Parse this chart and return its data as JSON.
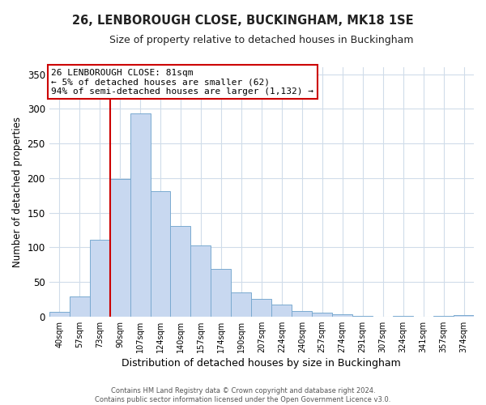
{
  "title": "26, LENBOROUGH CLOSE, BUCKINGHAM, MK18 1SE",
  "subtitle": "Size of property relative to detached houses in Buckingham",
  "xlabel": "Distribution of detached houses by size in Buckingham",
  "ylabel": "Number of detached properties",
  "categories": [
    "40sqm",
    "57sqm",
    "73sqm",
    "90sqm",
    "107sqm",
    "124sqm",
    "140sqm",
    "157sqm",
    "174sqm",
    "190sqm",
    "207sqm",
    "224sqm",
    "240sqm",
    "257sqm",
    "274sqm",
    "291sqm",
    "307sqm",
    "324sqm",
    "341sqm",
    "357sqm",
    "374sqm"
  ],
  "values": [
    7,
    29,
    111,
    198,
    293,
    181,
    131,
    103,
    69,
    35,
    25,
    17,
    8,
    5,
    3,
    1,
    0,
    1,
    0,
    1,
    2
  ],
  "bar_color": "#c8d8f0",
  "bar_edge_color": "#7aaad0",
  "marker_line_color": "#cc0000",
  "annotation_line1": "26 LENBOROUGH CLOSE: 81sqm",
  "annotation_line2": "← 5% of detached houses are smaller (62)",
  "annotation_line3": "94% of semi-detached houses are larger (1,132) →",
  "annotation_box_color": "#ffffff",
  "annotation_box_edge_color": "#cc0000",
  "ylim": [
    0,
    360
  ],
  "yticks": [
    0,
    50,
    100,
    150,
    200,
    250,
    300,
    350
  ],
  "footer_line1": "Contains HM Land Registry data © Crown copyright and database right 2024.",
  "footer_line2": "Contains public sector information licensed under the Open Government Licence v3.0.",
  "background_color": "#ffffff",
  "grid_color": "#d0dcea"
}
